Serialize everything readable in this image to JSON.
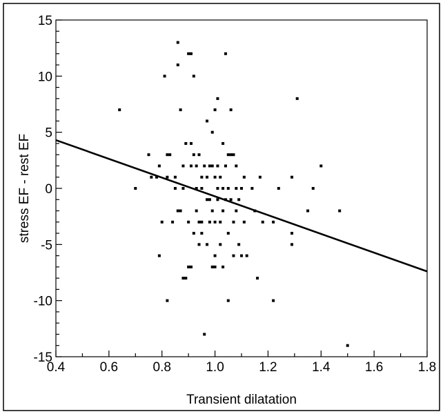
{
  "chart_data": {
    "type": "scatter",
    "title": "",
    "xlabel": "Transient dilatation",
    "ylabel": "stress EF - rest EF",
    "xlim": [
      0.4,
      1.8
    ],
    "ylim": [
      -15,
      15
    ],
    "x_ticks": [
      0.4,
      0.6,
      0.8,
      1.0,
      1.2,
      1.4,
      1.6,
      1.8
    ],
    "x_tick_labels": [
      "0.4",
      "0.6",
      "0.8",
      "1.0",
      "1.2",
      "1.4",
      "1.6",
      "1.8"
    ],
    "y_ticks": [
      -15,
      -10,
      -5,
      0,
      5,
      10,
      15
    ],
    "y_tick_labels": [
      "-15",
      "-10",
      "-5",
      "0",
      "5",
      "10",
      "15"
    ],
    "grid": false,
    "legend": "none",
    "colors": {
      "points": "#000000",
      "line": "#000000",
      "frame": "#000000"
    },
    "points": [
      [
        0.64,
        7
      ],
      [
        0.7,
        0
      ],
      [
        0.75,
        3
      ],
      [
        0.76,
        1
      ],
      [
        0.78,
        1
      ],
      [
        0.79,
        -6
      ],
      [
        0.79,
        2
      ],
      [
        0.8,
        -3
      ],
      [
        0.81,
        10
      ],
      [
        0.82,
        3
      ],
      [
        0.82,
        1
      ],
      [
        0.82,
        -10
      ],
      [
        0.83,
        3
      ],
      [
        0.84,
        -3
      ],
      [
        0.85,
        0
      ],
      [
        0.85,
        1
      ],
      [
        0.86,
        -2
      ],
      [
        0.86,
        11
      ],
      [
        0.86,
        13
      ],
      [
        0.87,
        7
      ],
      [
        0.87,
        -2
      ],
      [
        0.88,
        -8
      ],
      [
        0.88,
        0
      ],
      [
        0.88,
        2
      ],
      [
        0.89,
        -8
      ],
      [
        0.89,
        4
      ],
      [
        0.9,
        -7
      ],
      [
        0.9,
        12
      ],
      [
        0.9,
        -3
      ],
      [
        0.91,
        4
      ],
      [
        0.91,
        12
      ],
      [
        0.91,
        2
      ],
      [
        0.91,
        -7
      ],
      [
        0.92,
        10
      ],
      [
        0.92,
        3
      ],
      [
        0.92,
        -4
      ],
      [
        0.93,
        -2
      ],
      [
        0.93,
        0
      ],
      [
        0.93,
        2
      ],
      [
        0.94,
        -5
      ],
      [
        0.94,
        3
      ],
      [
        0.94,
        -3
      ],
      [
        0.95,
        1
      ],
      [
        0.95,
        -4
      ],
      [
        0.95,
        0
      ],
      [
        0.95,
        -3
      ],
      [
        0.96,
        -13
      ],
      [
        0.96,
        2
      ],
      [
        0.97,
        -1
      ],
      [
        0.97,
        1
      ],
      [
        0.97,
        -5
      ],
      [
        0.97,
        6
      ],
      [
        0.98,
        -3
      ],
      [
        0.98,
        -1
      ],
      [
        0.98,
        2
      ],
      [
        0.99,
        -7
      ],
      [
        0.99,
        5
      ],
      [
        0.99,
        -2
      ],
      [
        0.99,
        2
      ],
      [
        1.0,
        -7
      ],
      [
        1.0,
        7
      ],
      [
        1.0,
        -3
      ],
      [
        1.0,
        1
      ],
      [
        1.0,
        -6
      ],
      [
        1.01,
        -1
      ],
      [
        1.01,
        8
      ],
      [
        1.01,
        2
      ],
      [
        1.01,
        0
      ],
      [
        1.02,
        -5
      ],
      [
        1.02,
        -3
      ],
      [
        1.02,
        1
      ],
      [
        1.03,
        4
      ],
      [
        1.03,
        0
      ],
      [
        1.03,
        -2
      ],
      [
        1.03,
        -7
      ],
      [
        1.04,
        12
      ],
      [
        1.04,
        2
      ],
      [
        1.04,
        -1
      ],
      [
        1.05,
        3
      ],
      [
        1.05,
        0
      ],
      [
        1.05,
        -4
      ],
      [
        1.05,
        -10
      ],
      [
        1.06,
        7
      ],
      [
        1.06,
        3
      ],
      [
        1.06,
        -1
      ],
      [
        1.07,
        3
      ],
      [
        1.07,
        -3
      ],
      [
        1.07,
        -6
      ],
      [
        1.08,
        0
      ],
      [
        1.08,
        2
      ],
      [
        1.08,
        -2
      ],
      [
        1.09,
        -5
      ],
      [
        1.09,
        -1
      ],
      [
        1.1,
        0
      ],
      [
        1.1,
        -6
      ],
      [
        1.11,
        1
      ],
      [
        1.11,
        -3
      ],
      [
        1.12,
        -6
      ],
      [
        1.14,
        0
      ],
      [
        1.15,
        -2
      ],
      [
        1.16,
        -8
      ],
      [
        1.17,
        1
      ],
      [
        1.18,
        -3
      ],
      [
        1.22,
        -10
      ],
      [
        1.22,
        -3
      ],
      [
        1.24,
        0
      ],
      [
        1.29,
        1
      ],
      [
        1.29,
        -4
      ],
      [
        1.29,
        -5
      ],
      [
        1.31,
        8
      ],
      [
        1.35,
        -2
      ],
      [
        1.37,
        0
      ],
      [
        1.4,
        2
      ],
      [
        1.47,
        -2
      ],
      [
        1.5,
        -14
      ]
    ],
    "fit_line": {
      "x": [
        0.4,
        1.8
      ],
      "y": [
        4.3,
        -7.4
      ]
    }
  }
}
